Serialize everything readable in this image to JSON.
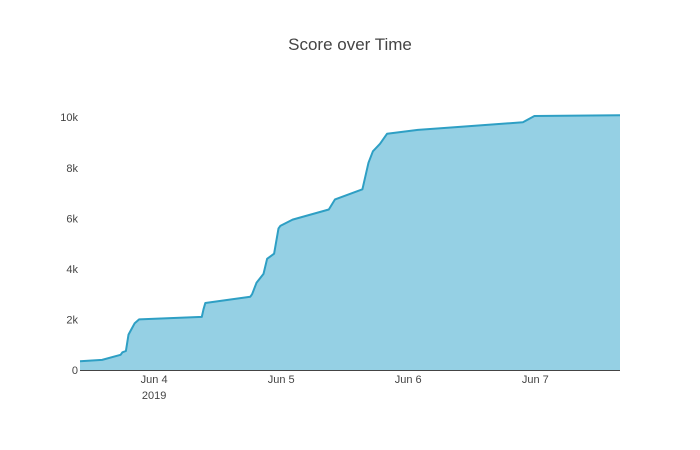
{
  "chart_data": {
    "type": "area",
    "title": "Score over Time",
    "xlabel": "",
    "ylabel": "",
    "x_axis": {
      "type": "date",
      "range": [
        "2019-06-03T10:00",
        "2019-06-07T16:00"
      ],
      "ticks": [
        {
          "value": "2019-06-04T00:00",
          "label": "Jun 4",
          "sublabel": "2019"
        },
        {
          "value": "2019-06-05T00:00",
          "label": "Jun 5",
          "sublabel": ""
        },
        {
          "value": "2019-06-06T00:00",
          "label": "Jun 6",
          "sublabel": ""
        },
        {
          "value": "2019-06-07T00:00",
          "label": "Jun 7",
          "sublabel": ""
        }
      ]
    },
    "y_axis": {
      "range": [
        0,
        10800
      ],
      "ticks": [
        {
          "value": 0,
          "label": "0"
        },
        {
          "value": 2000,
          "label": "2k"
        },
        {
          "value": 4000,
          "label": "4k"
        },
        {
          "value": 6000,
          "label": "6k"
        },
        {
          "value": 8000,
          "label": "8k"
        },
        {
          "value": 10000,
          "label": "10k"
        }
      ]
    },
    "grid": false,
    "legend": "none",
    "colors": {
      "line": "#2E9FC4",
      "fill": "#95D0E4",
      "axis": "#444444"
    },
    "series": [
      {
        "x": [
          "2019-06-03T10:00",
          "2019-06-03T14:10",
          "2019-06-03T17:40",
          "2019-06-03T18:00",
          "2019-06-03T18:40",
          "2019-06-03T19:10",
          "2019-06-03T19:40",
          "2019-06-03T20:20",
          "2019-06-03T21:10",
          "2019-06-04T09:00",
          "2019-06-04T09:20",
          "2019-06-04T09:40",
          "2019-06-04T18:10",
          "2019-06-04T18:30",
          "2019-06-04T19:20",
          "2019-06-04T20:40",
          "2019-06-04T21:20",
          "2019-06-04T22:40",
          "2019-06-04T23:30",
          "2019-06-04T23:50",
          "2019-06-05T02:10",
          "2019-06-05T09:00",
          "2019-06-05T10:10",
          "2019-06-05T15:20",
          "2019-06-05T16:30",
          "2019-06-05T17:20",
          "2019-06-05T18:40",
          "2019-06-05T20:00",
          "2019-06-06T01:50",
          "2019-06-06T21:40",
          "2019-06-06T23:50",
          "2019-06-07T16:00"
        ],
        "y": [
          350,
          400,
          600,
          700,
          750,
          1400,
          1600,
          1850,
          2000,
          2100,
          2400,
          2650,
          2900,
          3000,
          3450,
          3800,
          4400,
          4600,
          5600,
          5700,
          5950,
          6350,
          6750,
          7150,
          8200,
          8650,
          8950,
          9350,
          9500,
          9800,
          10050,
          10080
        ]
      }
    ]
  }
}
